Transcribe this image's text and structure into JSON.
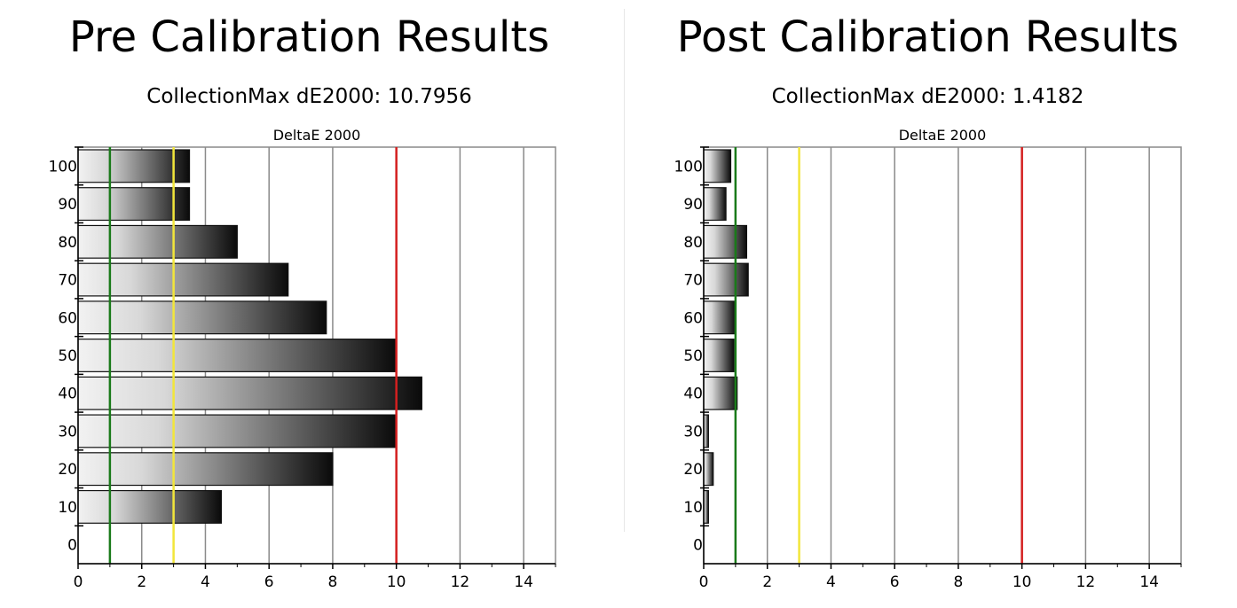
{
  "chart_data": [
    {
      "type": "bar",
      "title": "Pre Calibration Results",
      "subtitle": "CollectionMax dE2000: 10.7956",
      "plot_title": "DeltaE 2000",
      "orientation": "horizontal",
      "categories": [
        "0",
        "10",
        "20",
        "30",
        "40",
        "50",
        "60",
        "70",
        "80",
        "90",
        "100"
      ],
      "values": [
        0,
        4.5,
        8.0,
        10.0,
        10.8,
        10.0,
        7.8,
        6.6,
        5.0,
        3.5,
        3.5
      ],
      "xlim": [
        0,
        15
      ],
      "xticks": [
        "0",
        "2",
        "4",
        "6",
        "8",
        "10",
        "12",
        "14"
      ],
      "grid": true,
      "reference_lines": [
        {
          "value": 1,
          "color": "#1a7a1a"
        },
        {
          "value": 3,
          "color": "#f2e63a"
        },
        {
          "value": 10,
          "color": "#d42020"
        }
      ]
    },
    {
      "type": "bar",
      "title": "Post Calibration Results",
      "subtitle": "CollectionMax dE2000: 1.4182",
      "plot_title": "DeltaE 2000",
      "orientation": "horizontal",
      "categories": [
        "0",
        "10",
        "20",
        "30",
        "40",
        "50",
        "60",
        "70",
        "80",
        "90",
        "100"
      ],
      "values": [
        0,
        0.15,
        0.3,
        0.15,
        1.05,
        0.95,
        1.0,
        1.4,
        1.35,
        0.7,
        0.85
      ],
      "xlim": [
        0,
        15
      ],
      "xticks": [
        "0",
        "2",
        "4",
        "6",
        "8",
        "10",
        "12",
        "14"
      ],
      "grid": true,
      "reference_lines": [
        {
          "value": 1,
          "color": "#1a7a1a"
        },
        {
          "value": 3,
          "color": "#f2e63a"
        },
        {
          "value": 10,
          "color": "#d42020"
        }
      ]
    }
  ]
}
